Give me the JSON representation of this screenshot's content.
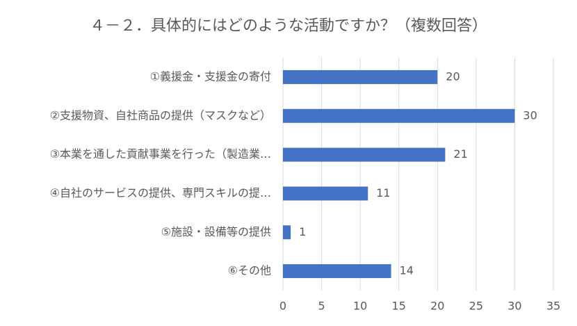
{
  "chart_data": {
    "type": "bar",
    "orientation": "horizontal",
    "title": "４－２．具体的にはどのような活動ですか？（複数回答）",
    "categories": [
      "①義援金・支援金の寄付",
      "②支援物資、自社商品の提供（マスクなど）",
      "③本業を通した貢献事業を行った（製造業…",
      "④自社のサービスの提供、専門スキルの提…",
      "⑤施設・設備等の提供",
      "⑥その他"
    ],
    "values": [
      20,
      30,
      21,
      11,
      1,
      14
    ],
    "color": "#4472c4",
    "xlim": [
      0,
      35
    ],
    "xticks": [
      0,
      5,
      10,
      15,
      20,
      25,
      30,
      35
    ],
    "grid": true
  }
}
